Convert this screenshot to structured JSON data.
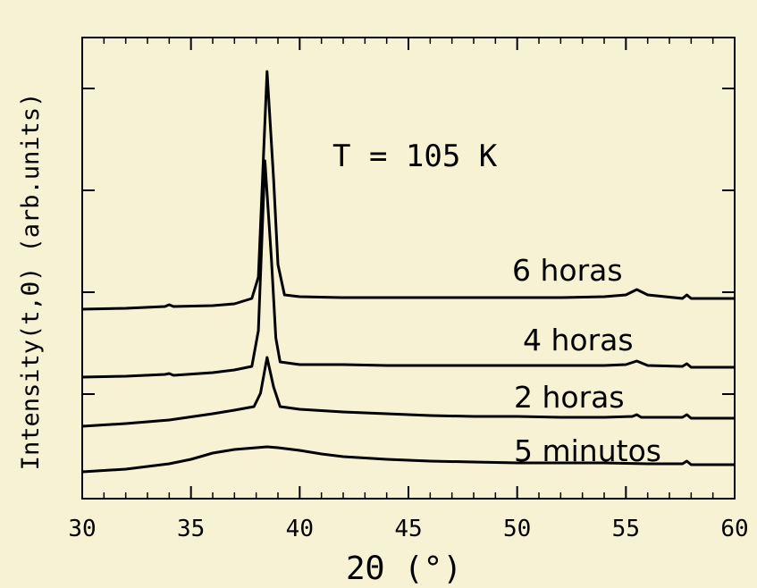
{
  "chart_data": {
    "type": "line",
    "title": "",
    "xlabel": "2Θ  (°)",
    "ylabel": "Intensity(t,Θ)  (arb.units)",
    "xlim": [
      30,
      60
    ],
    "x_ticks": [
      "30",
      "35",
      "40",
      "45",
      "50",
      "55",
      "60"
    ],
    "grid": false,
    "annotation": "T = 105 K",
    "colors": {
      "background": "#f7f2d4",
      "line": "#000000"
    },
    "series": [
      {
        "name": "5 minutos",
        "points": [
          [
            30,
            528
          ],
          [
            32,
            525
          ],
          [
            34,
            519
          ],
          [
            35,
            514
          ],
          [
            36,
            507
          ],
          [
            37,
            503
          ],
          [
            38,
            501
          ],
          [
            38.5,
            500
          ],
          [
            39,
            501
          ],
          [
            40,
            504
          ],
          [
            41,
            508
          ],
          [
            42,
            511
          ],
          [
            44,
            514
          ],
          [
            46,
            516
          ],
          [
            48,
            517
          ],
          [
            50,
            518
          ],
          [
            52,
            518
          ],
          [
            54,
            518
          ],
          [
            56,
            519
          ],
          [
            57.6,
            519
          ],
          [
            57.8,
            516
          ],
          [
            58,
            520
          ],
          [
            60,
            520
          ]
        ]
      },
      {
        "name": "2 horas",
        "points": [
          [
            30,
            477
          ],
          [
            32,
            474
          ],
          [
            34,
            470
          ],
          [
            36,
            463
          ],
          [
            37,
            459
          ],
          [
            37.9,
            455
          ],
          [
            38.2,
            440
          ],
          [
            38.5,
            400
          ],
          [
            38.8,
            433
          ],
          [
            39.1,
            455
          ],
          [
            40,
            458
          ],
          [
            42,
            461
          ],
          [
            44,
            463
          ],
          [
            46,
            465
          ],
          [
            48,
            466
          ],
          [
            50,
            466
          ],
          [
            52,
            467
          ],
          [
            54,
            467
          ],
          [
            55.3,
            466
          ],
          [
            55.5,
            464
          ],
          [
            55.7,
            467
          ],
          [
            57.6,
            467
          ],
          [
            57.8,
            464
          ],
          [
            58,
            468
          ],
          [
            60,
            468
          ]
        ]
      },
      {
        "name": "4 horas",
        "points": [
          [
            30,
            422
          ],
          [
            32,
            421
          ],
          [
            33.8,
            419
          ],
          [
            34,
            418
          ],
          [
            34.2,
            420
          ],
          [
            36,
            417
          ],
          [
            37,
            414
          ],
          [
            37.8,
            410
          ],
          [
            38.1,
            370
          ],
          [
            38.4,
            180
          ],
          [
            38.7,
            290
          ],
          [
            38.9,
            378
          ],
          [
            39.1,
            405
          ],
          [
            40,
            408
          ],
          [
            42,
            408
          ],
          [
            44,
            409
          ],
          [
            46,
            409
          ],
          [
            48,
            409
          ],
          [
            50,
            409
          ],
          [
            52,
            409
          ],
          [
            54,
            409
          ],
          [
            55,
            408
          ],
          [
            55.5,
            404
          ],
          [
            56,
            409
          ],
          [
            57.6,
            410
          ],
          [
            57.8,
            407
          ],
          [
            58,
            411
          ],
          [
            60,
            411
          ]
        ]
      },
      {
        "name": "6 horas",
        "points": [
          [
            30,
            346
          ],
          [
            32,
            345
          ],
          [
            33.8,
            343
          ],
          [
            34,
            341
          ],
          [
            34.2,
            343
          ],
          [
            36,
            342
          ],
          [
            37,
            340
          ],
          [
            37.8,
            334
          ],
          [
            38.1,
            310
          ],
          [
            38.5,
            80
          ],
          [
            38.8,
            200
          ],
          [
            39,
            296
          ],
          [
            39.3,
            330
          ],
          [
            40,
            332
          ],
          [
            42,
            333
          ],
          [
            44,
            333
          ],
          [
            46,
            333
          ],
          [
            48,
            333
          ],
          [
            50,
            333
          ],
          [
            52,
            333
          ],
          [
            54,
            332
          ],
          [
            55,
            330
          ],
          [
            55.5,
            324
          ],
          [
            56,
            330
          ],
          [
            57.6,
            334
          ],
          [
            57.8,
            330
          ],
          [
            58,
            334
          ],
          [
            60,
            334
          ]
        ]
      }
    ]
  }
}
